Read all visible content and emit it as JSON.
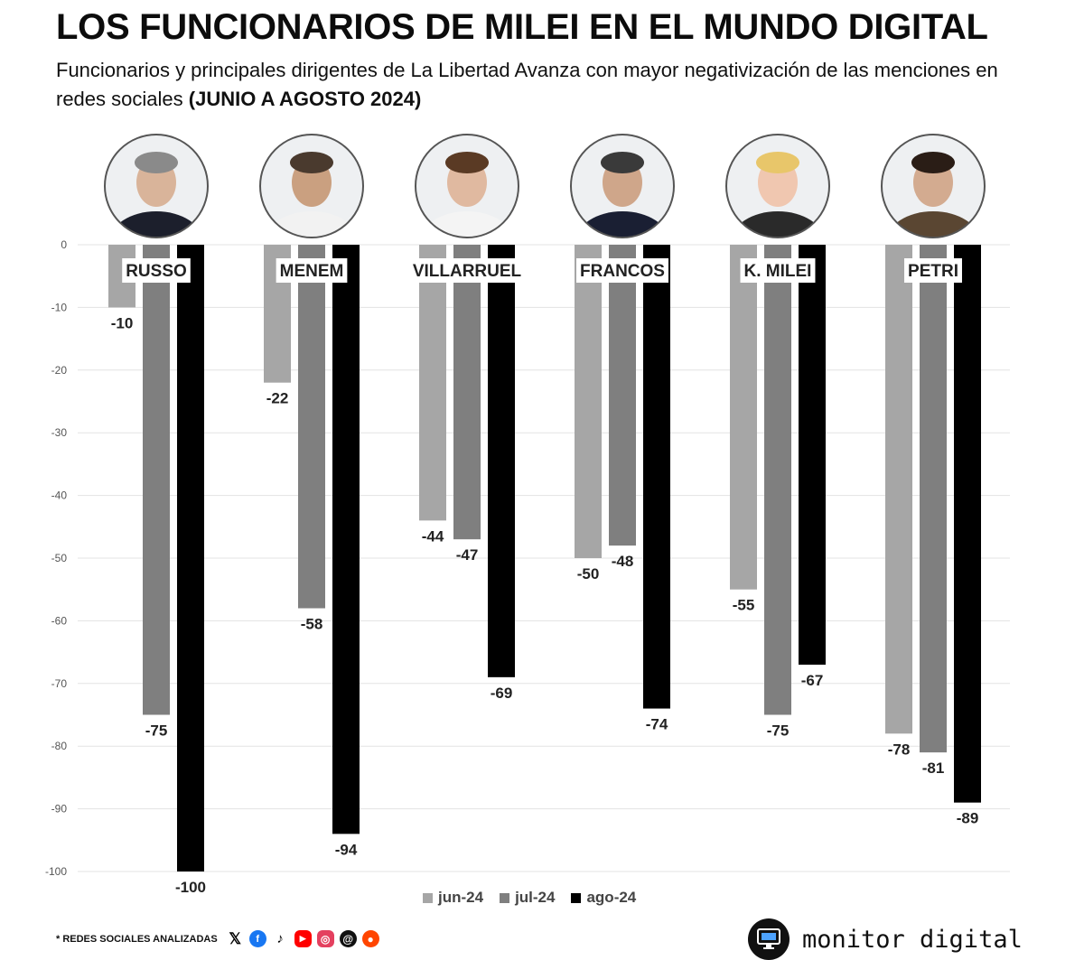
{
  "header": {
    "title": "LOS FUNCIONARIOS DE MILEI EN EL MUNDO DIGITAL",
    "subtitle": "Funcionarios y principales dirigentes de La Libertad Avanza con mayor negativización de las menciones en redes sociales",
    "period": "(JUNIO A AGOSTO 2024)"
  },
  "chart_data": {
    "type": "bar",
    "categories": [
      "RUSSO",
      "MENEM",
      "VILLARRUEL",
      "FRANCOS",
      "K. MILEI",
      "PETRI"
    ],
    "series": [
      {
        "name": "jun-24",
        "color": "#a6a6a6",
        "values": [
          -10,
          -22,
          -44,
          -50,
          -55,
          -78
        ]
      },
      {
        "name": "jul-24",
        "color": "#7f7f7f",
        "values": [
          -75,
          -58,
          -47,
          -48,
          -75,
          -81
        ]
      },
      {
        "name": "ago-24",
        "color": "#000000",
        "values": [
          -100,
          -94,
          -69,
          -74,
          -67,
          -89
        ]
      }
    ],
    "yticks": [
      0,
      -10,
      -20,
      -30,
      -40,
      -50,
      -60,
      -70,
      -80,
      -90,
      -100
    ],
    "ylim": [
      -100,
      0
    ],
    "grid": true,
    "legend": "bottom-center"
  },
  "footer": {
    "note": "* REDES SOCIALES ANALIZADAS",
    "networks": [
      "x-icon",
      "facebook-icon",
      "tiktok-icon",
      "youtube-icon",
      "instagram-icon",
      "threads-icon",
      "reddit-icon"
    ],
    "brand": "monitor digital"
  }
}
